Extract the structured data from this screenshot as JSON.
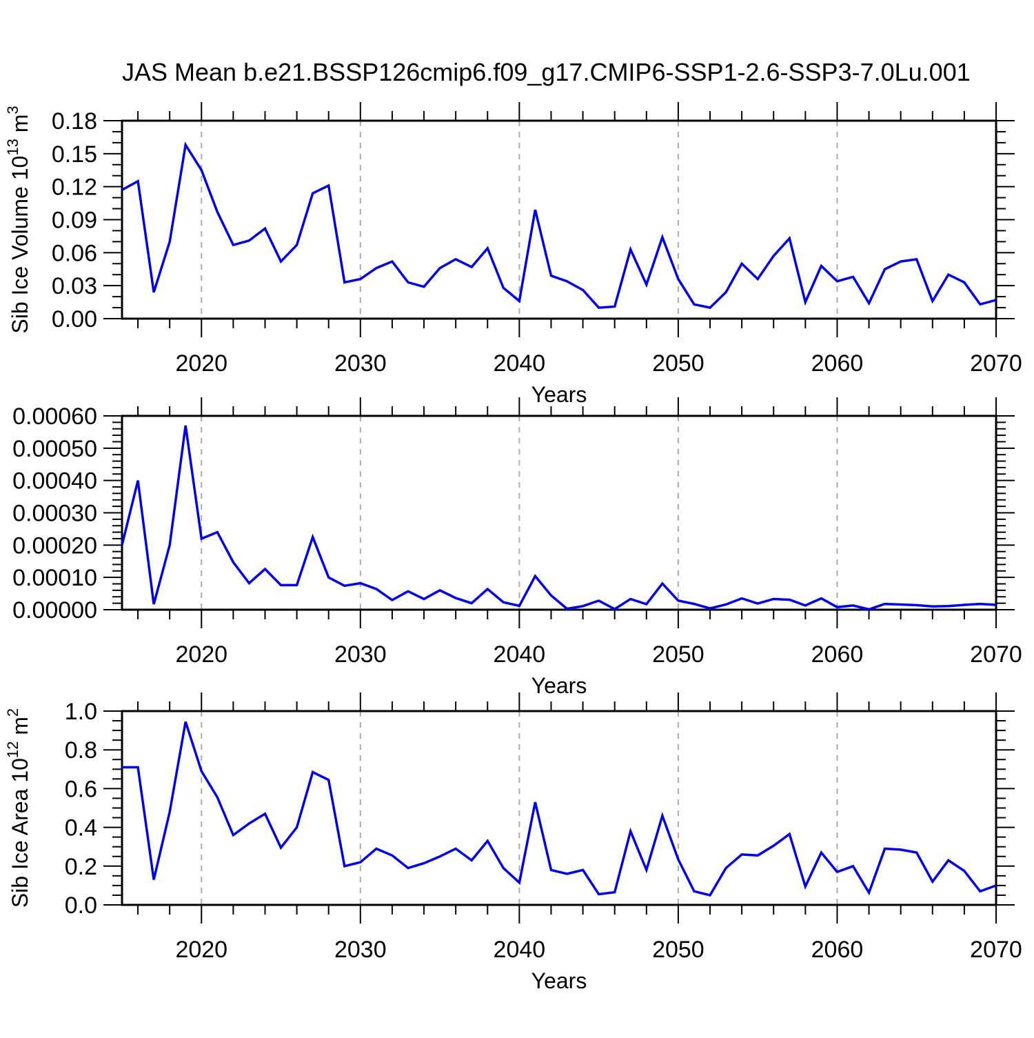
{
  "figure": {
    "title": "JAS Mean b.e21.BSSP126cmip6.f09_g17.CMIP6-SSP1-2.6-SSP3-7.0Lu.001"
  },
  "style": {
    "line_color": "#0000ee",
    "grid_color": "#aaaaaa",
    "axis_color": "#000000",
    "background": "#ffffff"
  },
  "years": [
    2015,
    2016,
    2017,
    2018,
    2019,
    2020,
    2021,
    2022,
    2023,
    2024,
    2025,
    2026,
    2027,
    2028,
    2029,
    2030,
    2031,
    2032,
    2033,
    2034,
    2035,
    2036,
    2037,
    2038,
    2039,
    2040,
    2041,
    2042,
    2043,
    2044,
    2045,
    2046,
    2047,
    2048,
    2049,
    2050,
    2051,
    2052,
    2053,
    2054,
    2055,
    2056,
    2057,
    2058,
    2059,
    2060,
    2061,
    2062,
    2063,
    2064,
    2065,
    2066,
    2067,
    2068,
    2069,
    2070
  ],
  "chart_data": [
    {
      "id": "sib-ice-volume",
      "type": "line",
      "title": "JAS Mean b.e21.BSSP126cmip6.f09_g17.CMIP6-SSP1-2.6-SSP3-7.0Lu.001",
      "ylabel_parts": [
        {
          "text": "Sib Ice Volume 10"
        },
        {
          "text": "13",
          "sup": true
        },
        {
          "text": " m"
        },
        {
          "text": "3",
          "sup": true
        }
      ],
      "xlabel": "Years",
      "x_range": [
        2015,
        2070
      ],
      "x_major_ticks": [
        2020,
        2030,
        2040,
        2050,
        2060,
        2070
      ],
      "x_tick_labels": [
        "2020",
        "2030",
        "2040",
        "2050",
        "2060",
        "2070"
      ],
      "x_minor_step": 2,
      "x_gridlines": [
        2020,
        2030,
        2040,
        2050,
        2060
      ],
      "ylim": [
        0,
        0.18
      ],
      "y_major_ticks": [
        0,
        0.03,
        0.06,
        0.09,
        0.12,
        0.15,
        0.18
      ],
      "y_tick_labels": [
        "0.00",
        "0.03",
        "0.06",
        "0.09",
        "0.12",
        "0.15",
        "0.18"
      ],
      "y_minor_divisions": 3,
      "line_color": "#0000ee",
      "y": [
        0.117,
        0.125,
        0.024,
        0.07,
        0.158,
        0.135,
        0.097,
        0.067,
        0.071,
        0.082,
        0.052,
        0.067,
        0.114,
        0.121,
        0.033,
        0.036,
        0.046,
        0.052,
        0.033,
        0.029,
        0.046,
        0.054,
        0.047,
        0.064,
        0.028,
        0.016,
        0.099,
        0.039,
        0.034,
        0.026,
        0.01,
        0.011,
        0.063,
        0.031,
        0.074,
        0.036,
        0.013,
        0.01,
        0.024,
        0.05,
        0.036,
        0.057,
        0.073,
        0.015,
        0.048,
        0.034,
        0.038,
        0.014,
        0.045,
        0.052,
        0.054,
        0.016,
        0.04,
        0.033,
        0.013,
        0.017
      ]
    },
    {
      "id": "sib-ice-middle",
      "type": "line",
      "title": "",
      "ylabel_parts": null,
      "xlabel": "Years",
      "x_range": [
        2015,
        2070
      ],
      "x_major_ticks": [
        2020,
        2030,
        2040,
        2050,
        2060,
        2070
      ],
      "x_tick_labels": [
        "2020",
        "2030",
        "2040",
        "2050",
        "2060",
        "2070"
      ],
      "x_minor_step": 2,
      "x_gridlines": [
        2020,
        2030,
        2040,
        2050,
        2060
      ],
      "ylim": [
        0,
        0.0006
      ],
      "y_major_ticks": [
        0,
        0.0001,
        0.0002,
        0.0003,
        0.0004,
        0.0005,
        0.0006
      ],
      "y_tick_labels": [
        "0.00000",
        "0.00010",
        "0.00020",
        "0.00030",
        "0.00040",
        "0.00050",
        "0.00060"
      ],
      "y_minor_divisions": 5,
      "line_color": "#0000ee",
      "y": [
        0.0002,
        0.0004,
        1.7e-05,
        0.0002,
        0.00057,
        0.00022,
        0.00024,
        0.000147,
        8.2e-05,
        0.000126,
        7.6e-05,
        7.6e-05,
        0.000225,
        0.0001,
        7.4e-05,
        8.2e-05,
        6.4e-05,
        3e-05,
        5.7e-05,
        3.3e-05,
        6e-05,
        3.6e-05,
        2e-05,
        6.4e-05,
        2.3e-05,
        1.2e-05,
        0.000104,
        4.4e-05,
        3e-06,
        1.1e-05,
        2.8e-05,
        2e-06,
        3.3e-05,
        1.7e-05,
        8.1e-05,
        2.8e-05,
        1.8e-05,
        4e-06,
        1.6e-05,
        3.5e-05,
        1.9e-05,
        3.3e-05,
        3.1e-05,
        1.3e-05,
        3.5e-05,
        8e-06,
        1.3e-05,
        1e-06,
        1.8e-05,
        1.6e-05,
        1.4e-05,
        1e-05,
        1.1e-05,
        1.5e-05,
        1.8e-05,
        1.5e-05
      ]
    },
    {
      "id": "sib-ice-area",
      "type": "line",
      "title": "",
      "ylabel_parts": [
        {
          "text": "Sib Ice Area 10"
        },
        {
          "text": "12",
          "sup": true
        },
        {
          "text": " m"
        },
        {
          "text": "2",
          "sup": true
        }
      ],
      "xlabel": "Years",
      "x_range": [
        2015,
        2070
      ],
      "x_major_ticks": [
        2020,
        2030,
        2040,
        2050,
        2060,
        2070
      ],
      "x_tick_labels": [
        "2020",
        "2030",
        "2040",
        "2050",
        "2060",
        "2070"
      ],
      "x_minor_step": 2,
      "x_gridlines": [
        2020,
        2030,
        2040,
        2050,
        2060
      ],
      "ylim": [
        0,
        1.0
      ],
      "y_major_ticks": [
        0,
        0.2,
        0.4,
        0.6,
        0.8,
        1.0
      ],
      "y_tick_labels": [
        "0.0",
        "0.2",
        "0.4",
        "0.6",
        "0.8",
        "1.0"
      ],
      "y_minor_divisions": 4,
      "line_color": "#0000ee",
      "y": [
        0.71,
        0.71,
        0.13,
        0.48,
        0.945,
        0.69,
        0.555,
        0.36,
        0.42,
        0.47,
        0.295,
        0.4,
        0.685,
        0.645,
        0.2,
        0.22,
        0.29,
        0.255,
        0.19,
        0.215,
        0.25,
        0.29,
        0.23,
        0.33,
        0.19,
        0.115,
        0.53,
        0.18,
        0.16,
        0.18,
        0.055,
        0.065,
        0.38,
        0.18,
        0.46,
        0.235,
        0.07,
        0.05,
        0.19,
        0.26,
        0.255,
        0.305,
        0.365,
        0.095,
        0.27,
        0.17,
        0.2,
        0.063,
        0.29,
        0.285,
        0.27,
        0.12,
        0.23,
        0.175,
        0.07,
        0.1
      ]
    }
  ]
}
